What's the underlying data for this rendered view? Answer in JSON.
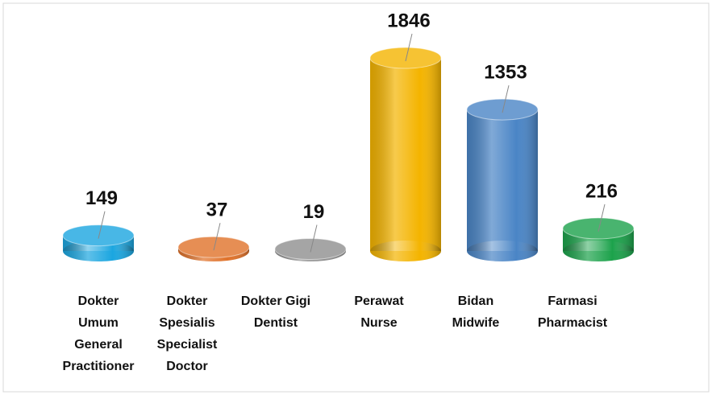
{
  "chart_data": {
    "type": "bar",
    "categories": [
      [
        "Dokter",
        "Umum",
        "General",
        "Practitioner"
      ],
      [
        "Dokter",
        "Spesialis",
        "Specialist",
        "Doctor"
      ],
      [
        "Dokter Gigi",
        "Dentist"
      ],
      [
        "Perawat",
        "Nurse"
      ],
      [
        "Bidan",
        "Midwife"
      ],
      [
        "Farmasi",
        "Pharmacist"
      ]
    ],
    "values": [
      149,
      37,
      19,
      1846,
      1353,
      216
    ],
    "colors": [
      "#1ba6e0",
      "#e0722a",
      "#8f8f8f",
      "#f4b400",
      "#4a85c6",
      "#1ca24b"
    ]
  }
}
